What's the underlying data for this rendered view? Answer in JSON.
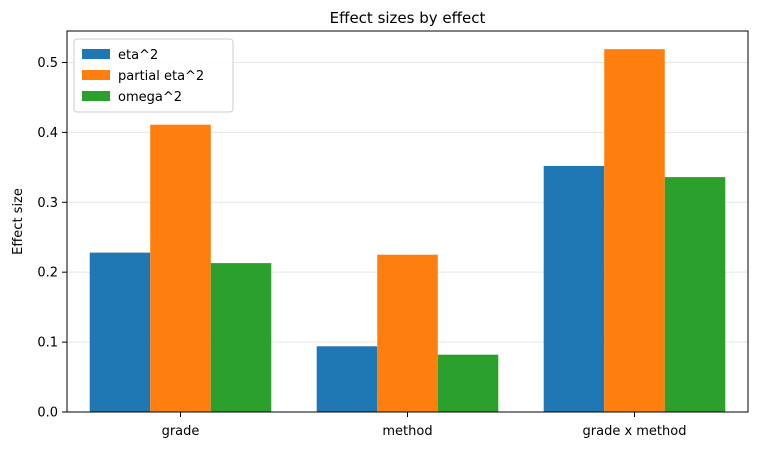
{
  "chart_data": {
    "type": "bar",
    "title": "Effect sizes by effect",
    "xlabel": "",
    "ylabel": "Effect size",
    "categories": [
      "grade",
      "method",
      "grade x method"
    ],
    "series": [
      {
        "name": "eta^2",
        "values": [
          0.228,
          0.094,
          0.352
        ],
        "color": "#1f77b4"
      },
      {
        "name": "partial eta^2",
        "values": [
          0.411,
          0.225,
          0.519
        ],
        "color": "#ff7f0e"
      },
      {
        "name": "omega^2",
        "values": [
          0.213,
          0.082,
          0.336
        ],
        "color": "#2ca02c"
      }
    ],
    "ylim": [
      0,
      0.545
    ],
    "yticks": [
      0.0,
      0.1,
      0.2,
      0.3,
      0.4,
      0.5
    ],
    "ytick_labels": [
      "0.0",
      "0.1",
      "0.2",
      "0.3",
      "0.4",
      "0.5"
    ],
    "grid": true,
    "legend_position": "top-left"
  }
}
